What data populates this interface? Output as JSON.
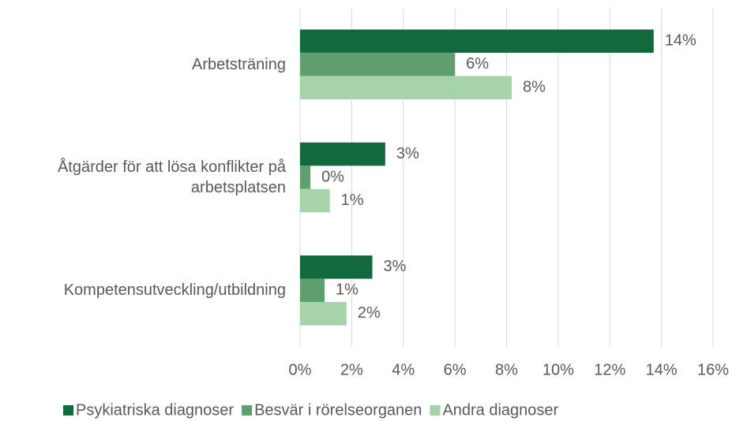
{
  "chart_data": {
    "type": "hbar",
    "categories": [
      "Arbetsträning",
      "Åtgärder för att lösa konflikter på arbetsplatsen",
      "Kompetensutveckling/utbildning"
    ],
    "series": [
      {
        "name": "Psykiatriska diagnoser",
        "color": "#13693e",
        "values": [
          13.7,
          3.3,
          2.8
        ],
        "value_labels": [
          "14%",
          "3%",
          "3%"
        ]
      },
      {
        "name": "Besvär i rörelseorganen",
        "color": "#5f9e6e",
        "values": [
          6.0,
          0.4,
          0.95
        ],
        "value_labels": [
          "6%",
          "0%",
          "1%"
        ]
      },
      {
        "name": "Andra diagnoser",
        "color": "#a7d3ab",
        "values": [
          8.2,
          1.15,
          1.8
        ],
        "value_labels": [
          "8%",
          "1%",
          "2%"
        ]
      }
    ],
    "xlim": [
      0,
      16
    ],
    "xticks": [
      {
        "value": 0,
        "label": "0%"
      },
      {
        "value": 2,
        "label": "2%"
      },
      {
        "value": 4,
        "label": "4%"
      },
      {
        "value": 6,
        "label": "6%"
      },
      {
        "value": 8,
        "label": "8%"
      },
      {
        "value": 10,
        "label": "10%"
      },
      {
        "value": 12,
        "label": "12%"
      },
      {
        "value": 14,
        "label": "14%"
      },
      {
        "value": 16,
        "label": "16%"
      }
    ],
    "grid": true,
    "legend": "bottom"
  }
}
